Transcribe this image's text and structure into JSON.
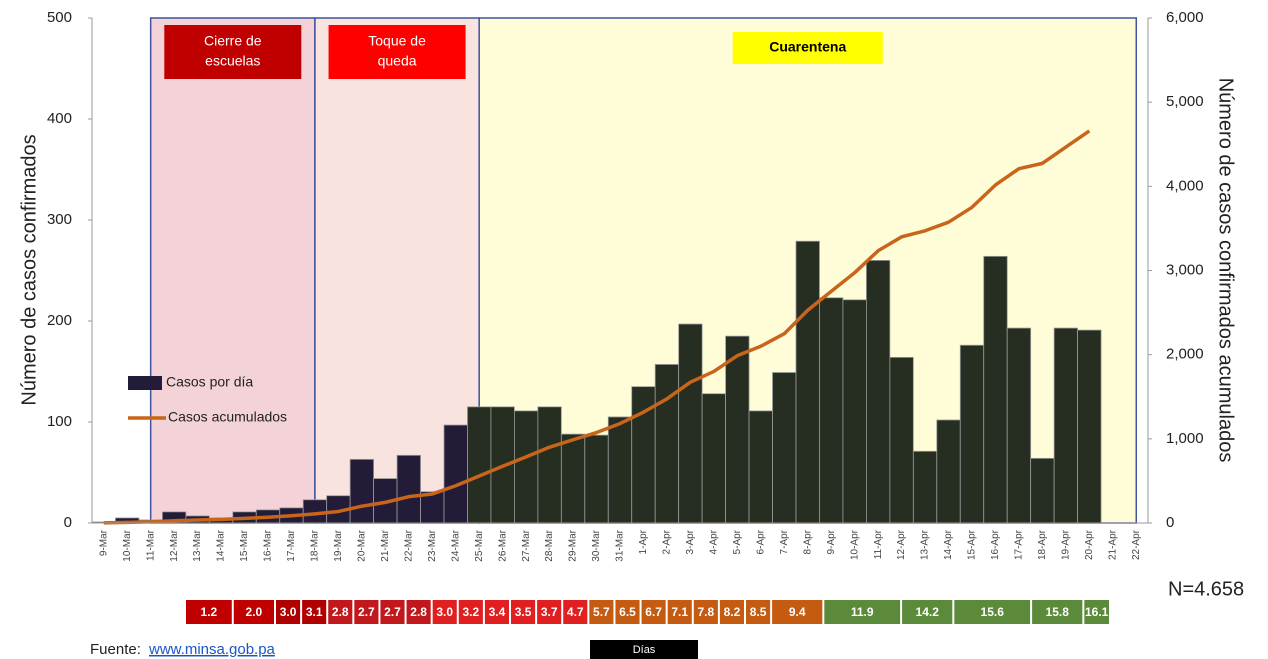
{
  "chart_data": {
    "type": "bar",
    "ylabel": "Número de casos confirmados",
    "y2label": "Número de casos confirmados acumulados",
    "categories": [
      "9-Mar",
      "10-Mar",
      "11-Mar",
      "12-Mar",
      "13-Mar",
      "14-Mar",
      "15-Mar",
      "16-Mar",
      "17-Mar",
      "18-Mar",
      "19-Mar",
      "20-Mar",
      "21-Mar",
      "22-Mar",
      "23-Mar",
      "24-Mar",
      "25-Mar",
      "26-Mar",
      "27-Mar",
      "28-Mar",
      "29-Mar",
      "30-Mar",
      "31-Mar",
      "1-Apr",
      "2-Apr",
      "3-Apr",
      "4-Apr",
      "5-Apr",
      "6-Apr",
      "7-Apr",
      "8-Apr",
      "9-Apr",
      "10-Apr",
      "11-Apr",
      "12-Apr",
      "13-Apr",
      "14-Apr",
      "15-Apr",
      "16-Apr",
      "17-Apr",
      "18-Apr",
      "19-Apr",
      "20-Apr",
      "21-Apr",
      "22-Apr"
    ],
    "series": [
      {
        "name": "Casos por día",
        "type": "bar",
        "colors": [
          "#221c38",
          "#221c38",
          "#221c38",
          "#221c38",
          "#221c38",
          "#221c38",
          "#221c38",
          "#221c38",
          "#221c38",
          "#221c38",
          "#221c38",
          "#221c38",
          "#221c38",
          "#221c38",
          "#221c38",
          "#221c38",
          "#262e21",
          "#262e21",
          "#262e21",
          "#262e21",
          "#262e21",
          "#262e21",
          "#262e21",
          "#262e21",
          "#262e21",
          "#262e21",
          "#262e21",
          "#262e21",
          "#262e21",
          "#262e21",
          "#262e21",
          "#262e21",
          "#262e21",
          "#262e21",
          "#262e21",
          "#262e21",
          "#262e21",
          "#262e21",
          "#262e21",
          "#262e21",
          "#262e21",
          "#262e21",
          "#262e21",
          "#262e21",
          "#262e21"
        ],
        "values": [
          1,
          5,
          3,
          11,
          7,
          5,
          11,
          13,
          15,
          23,
          27,
          63,
          44,
          67,
          31,
          97,
          115,
          115,
          111,
          115,
          88,
          87,
          105,
          135,
          157,
          197,
          128,
          185,
          111,
          149,
          279,
          223,
          221,
          260,
          164,
          71,
          102,
          176,
          264,
          193,
          64,
          193,
          191,
          null,
          null
        ]
      },
      {
        "name": "Casos acumulados",
        "type": "line",
        "axis": "y2",
        "color": "#c8651b",
        "values": [
          1,
          8,
          14,
          27,
          36,
          43,
          55,
          69,
          86,
          109,
          137,
          200,
          245,
          313,
          345,
          443,
          558,
          674,
          786,
          901,
          989,
          1075,
          1181,
          1317,
          1475,
          1673,
          1801,
          1988,
          2100,
          2249,
          2528,
          2752,
          2974,
          3234,
          3400,
          3472,
          3574,
          3751,
          4016,
          4210,
          4273,
          4467,
          4658,
          null,
          null
        ]
      }
    ],
    "ylim": [
      0,
      500
    ],
    "yticks": [
      0,
      100,
      200,
      300,
      400,
      500
    ],
    "y2lim": [
      0,
      6000
    ],
    "y2ticks": [
      0,
      {
        "value": 1000,
        "label": "1,000"
      },
      {
        "value": 2000,
        "label": "2,000"
      },
      {
        "value": 3000,
        "label": "3,000"
      },
      {
        "value": 4000,
        "label": "4,000"
      },
      {
        "value": 5000,
        "label": "5,000"
      },
      {
        "value": 6000,
        "label": "6,000"
      }
    ],
    "regions": [
      {
        "label": [
          "Cierre de",
          "escuelas"
        ],
        "start": "11-Mar",
        "end": "18-Mar",
        "color": "#f3d3d8",
        "label_color": "#c00000",
        "text_color": "#ffffff"
      },
      {
        "label": [
          "Toque de",
          "queda"
        ],
        "start": "18-Mar",
        "end": "25-Mar",
        "color": "#f9e3de",
        "label_color": "#ff0000",
        "text_color": "#ffffff"
      },
      {
        "label": [
          "Cuarentena"
        ],
        "start": "25-Mar",
        "end": "22-Apr",
        "color": "#fffcd8",
        "label_color": "#ffff00",
        "text_color": "#000000"
      }
    ],
    "doubling": {
      "label": "Días",
      "boxes": [
        {
          "label": "1.2",
          "color": "#c00000"
        },
        {
          "label": "2.0",
          "color": "#c00000"
        },
        {
          "label": "3.0",
          "color": "#b00000"
        },
        {
          "label": "3.1",
          "color": "#b00000"
        },
        {
          "label": "2.8",
          "color": "#c0181c"
        },
        {
          "label": "2.7",
          "color": "#c0181c"
        },
        {
          "label": "2.7",
          "color": "#c0181c"
        },
        {
          "label": "2.8",
          "color": "#c0181c"
        },
        {
          "label": "3.0",
          "color": "#e02020"
        },
        {
          "label": "3.2",
          "color": "#e02020"
        },
        {
          "label": "3.4",
          "color": "#e02020"
        },
        {
          "label": "3.5",
          "color": "#e02020"
        },
        {
          "label": "3.7",
          "color": "#e02020"
        },
        {
          "label": "4.7",
          "color": "#e02020"
        },
        {
          "label": "5.7",
          "color": "#c55a11"
        },
        {
          "label": "6.5",
          "color": "#c55a11"
        },
        {
          "label": "6.7",
          "color": "#c55a11"
        },
        {
          "label": "7.1",
          "color": "#c55a11"
        },
        {
          "label": "7.8",
          "color": "#c55a11"
        },
        {
          "label": "8.2",
          "color": "#c55a11"
        },
        {
          "label": "8.5",
          "color": "#c55a11"
        },
        {
          "label": "9.4",
          "color": "#c55a11"
        },
        {
          "label": "11.9",
          "color": "#5a8a3a"
        },
        {
          "label": "14.2",
          "color": "#5a8a3a"
        },
        {
          "label": "15.6",
          "color": "#5a8a3a"
        },
        {
          "label": "15.8",
          "color": "#5a8a3a"
        },
        {
          "label": "16.1",
          "color": "#5a8a3a"
        }
      ]
    },
    "note": "N=4.658",
    "source": {
      "prefix": "Fuente:",
      "link": "www.minsa.gob.pa"
    }
  }
}
